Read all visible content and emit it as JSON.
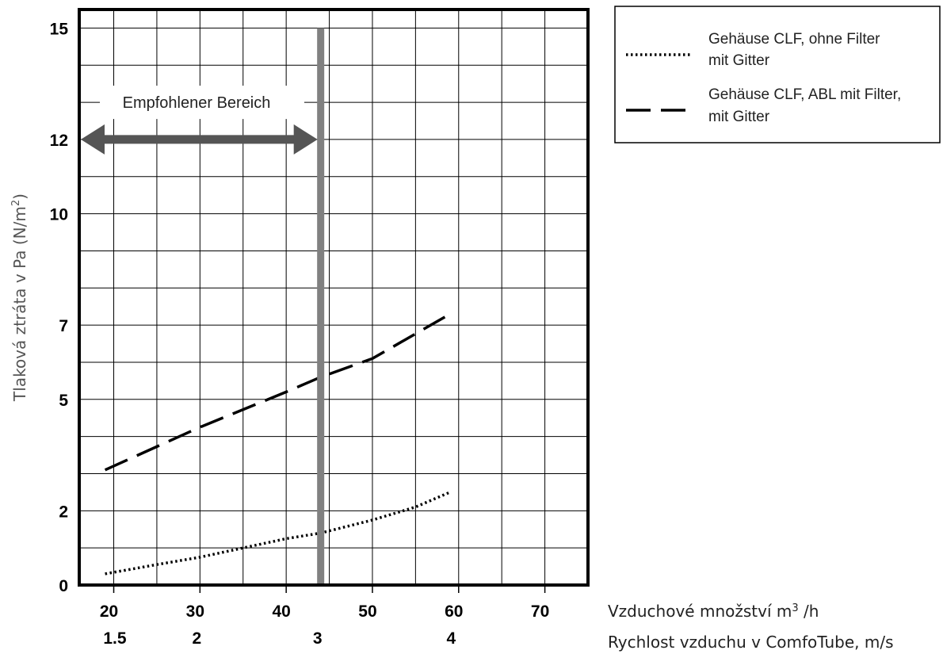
{
  "chart_data": {
    "type": "line",
    "ylabel": "Tlaková ztráta v Pa (N/m²)",
    "ylabel_main": "Tlaková ztráta v Pa (N/m",
    "ylabel_sup": "2",
    "ylabel_end": ")",
    "y_ticks": [
      0,
      2,
      5,
      7,
      10,
      12,
      15
    ],
    "ylim": [
      0,
      15.5
    ],
    "x_ticks_primary": [
      20,
      30,
      40,
      50,
      60,
      70
    ],
    "x_ticks_secondary": [
      {
        "label": "1.5",
        "at": 20.5
      },
      {
        "label": "2",
        "at": 30
      },
      {
        "label": "3",
        "at": 44
      },
      {
        "label": "4",
        "at": 59.5
      }
    ],
    "xlim": [
      16,
      75
    ],
    "xlabel_primary": "Vzduchové množství m",
    "xlabel_primary_sup": "3",
    "xlabel_primary_end": " /h",
    "xlabel_secondary": "Rychlost vzduchu v ComfoTube,  m/s",
    "grid": true,
    "series": [
      {
        "name": "Gehäuse CLF, ohne Filter mit Gitter",
        "style": "dotted",
        "x": [
          19,
          25,
          30,
          35,
          40,
          44,
          50,
          55,
          59
        ],
        "y": [
          0.3,
          0.55,
          0.75,
          1.0,
          1.25,
          1.4,
          1.75,
          2.1,
          2.5
        ]
      },
      {
        "name": "Gehäuse CLF, ABL mit Filter, mit Gitter",
        "style": "dashed",
        "x": [
          19,
          30,
          40,
          44,
          50,
          59
        ],
        "y": [
          3.1,
          4.25,
          5.2,
          5.6,
          6.1,
          7.3
        ]
      }
    ],
    "vertical_marker": {
      "x": 44,
      "color": "#808080"
    },
    "recommended_range": {
      "label": "Empfohlener Bereich",
      "x": [
        16,
        44
      ],
      "y": 12,
      "color": "#555555"
    }
  },
  "legend": {
    "items": [
      {
        "style": "dotted",
        "line1": "Gehäuse CLF, ohne Filter",
        "line2": "mit Gitter"
      },
      {
        "style": "dashed",
        "line1": "Gehäuse CLF, ABL mit Filter,",
        "line2": "mit Gitter"
      }
    ]
  }
}
